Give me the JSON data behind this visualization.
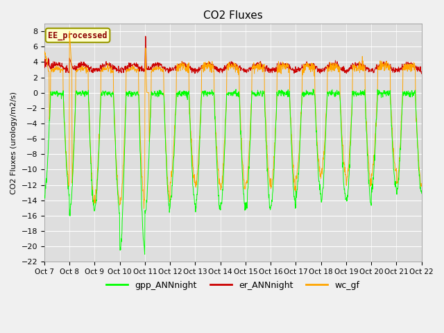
{
  "title": "CO2 Fluxes",
  "ylabel": "CO2 Fluxes (urology/m2/s)",
  "xlabel": "",
  "ylim": [
    -22,
    9
  ],
  "yticks": [
    8,
    6,
    4,
    2,
    0,
    -2,
    -4,
    -6,
    -8,
    -10,
    -12,
    -14,
    -16,
    -18,
    -20,
    -22
  ],
  "xtick_labels": [
    "Oct 7",
    "Oct 8",
    "Oct 9",
    "Oct 10",
    "Oct 11",
    "Oct 12",
    "Oct 13",
    "Oct 14",
    "Oct 15",
    "Oct 16",
    "Oct 17",
    "Oct 18",
    "Oct 19",
    "Oct 20",
    "Oct 21",
    "Oct 22"
  ],
  "gpp_color": "#00FF00",
  "er_color": "#CC0000",
  "wc_color": "#FFA500",
  "legend_label": "EE_processed",
  "series_labels": [
    "gpp_ANNnight",
    "er_ANNnight",
    "wc_gf"
  ],
  "bg_color": "#DEDEDE",
  "fig_color": "#F0F0F0",
  "title_fontsize": 11,
  "axis_fontsize": 8,
  "legend_fontsize": 9,
  "n_days": 15,
  "samples_per_day": 96
}
